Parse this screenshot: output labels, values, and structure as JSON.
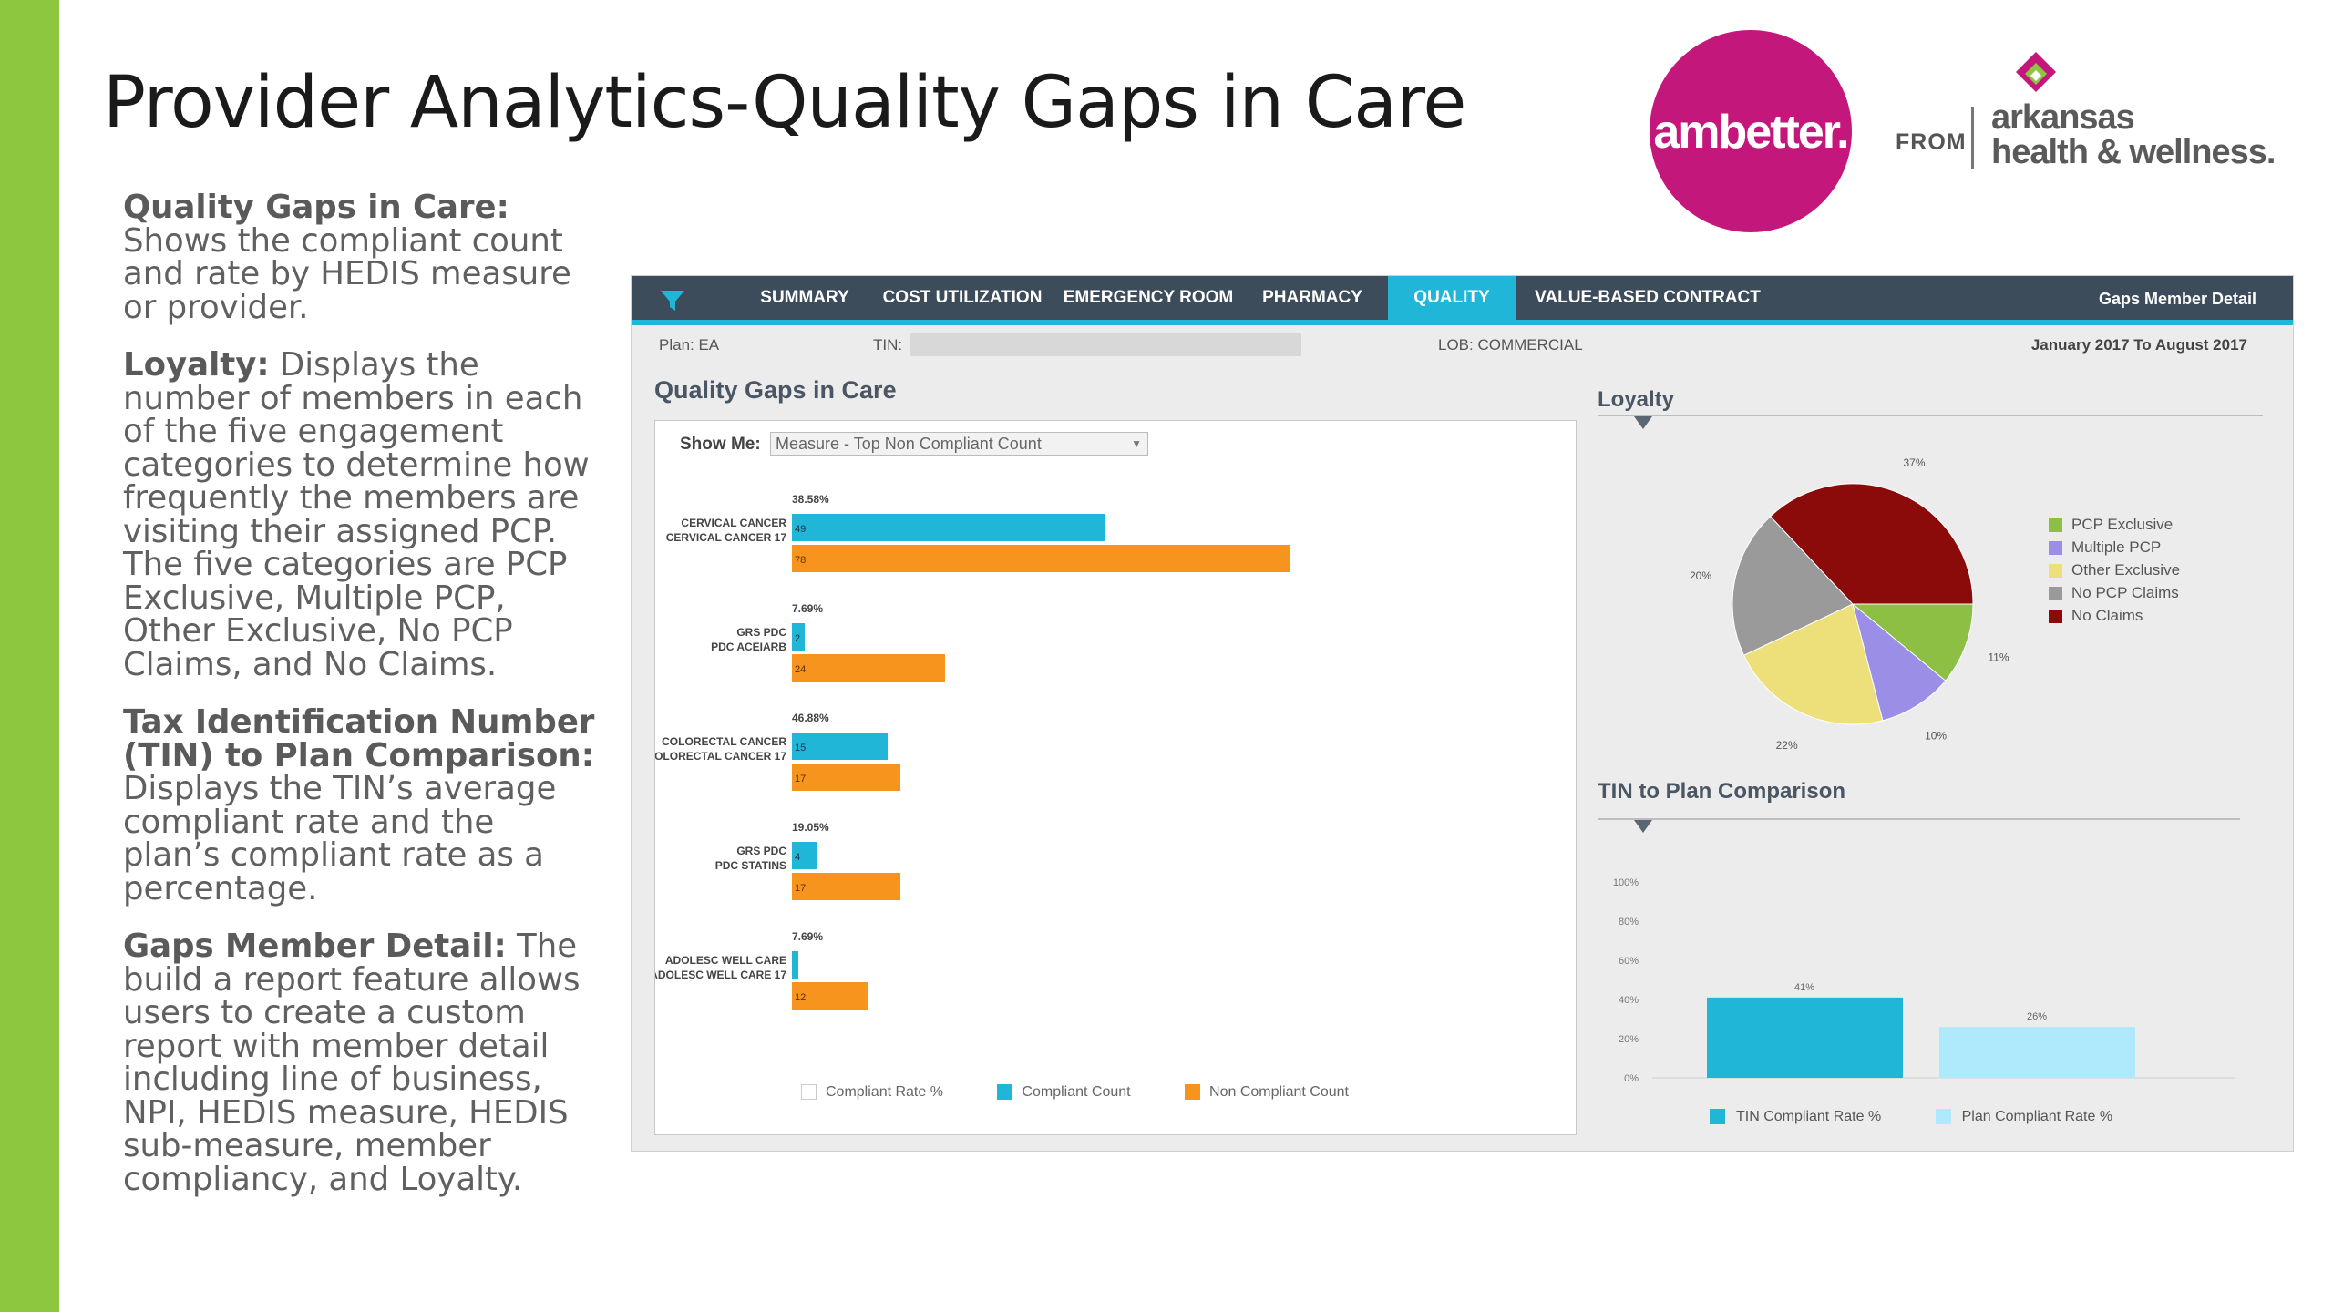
{
  "slide": {
    "title": "Provider Analytics-Quality Gaps in Care"
  },
  "logo": {
    "brand": "ambetter.",
    "from": "FROM",
    "partner_line1": "arkansas",
    "partner_line2": "health & wellness."
  },
  "descriptions": [
    {
      "heading": "Quality Gaps in Care:",
      "text": " Shows the compliant count and rate by HEDIS measure or provider."
    },
    {
      "heading": "Loyalty:",
      "text": " Displays the number of members in each of the five engagement categories to determine how frequently the members are visiting their assigned PCP. The five categories are PCP Exclusive, Multiple PCP, Other Exclusive, No PCP Claims, and No Claims."
    },
    {
      "heading": "Tax Identification Number (TIN) to Plan Comparison:",
      "text": " Displays the TIN’s average compliant rate and the plan’s compliant rate as a percentage."
    },
    {
      "heading": "Gaps Member Detail:",
      "text": " The build a report feature allows users to create a custom report with member detail including line of business, NPI, HEDIS measure, HEDIS sub-measure, member compliancy, and Loyalty."
    }
  ],
  "navbar": {
    "items": [
      "SUMMARY",
      "COST UTILIZATION",
      "EMERGENCY ROOM",
      "PHARMACY",
      "QUALITY",
      "VALUE-BASED CONTRACT"
    ],
    "active": "QUALITY",
    "right_link": "Gaps Member Detail"
  },
  "filters": {
    "plan": "Plan: EA",
    "tin_label": "TIN:",
    "lob": "LOB: COMMERCIAL",
    "date_range": "January 2017 To August 2017"
  },
  "gaps_panel": {
    "title": "Quality Gaps in Care",
    "show_me_label": "Show Me:",
    "show_me_value": "Measure - Top Non Compliant Count"
  },
  "colors": {
    "compliant": "#1fb6d8",
    "non_compliant": "#f7941d",
    "pcp_exclusive": "#8cbf44",
    "multiple_pcp": "#9b8ee6",
    "other_exclusive": "#ede07a",
    "no_pcp_claims": "#9a9a9a",
    "no_claims": "#8b0a0a",
    "tin_rate": "#1fb6d8",
    "plan_rate": "#aeeafb"
  },
  "chart_data": [
    {
      "type": "bar",
      "title": "Quality Gaps in Care",
      "categories": [
        [
          "CERVICAL CANCER",
          "CERVICAL CANCER 17"
        ],
        [
          "GRS PDC",
          "PDC ACEIARB"
        ],
        [
          "COLORECTAL CANCER",
          "COLORECTAL CANCER 17"
        ],
        [
          "GRS PDC",
          "PDC STATINS"
        ],
        [
          "ADOLESC WELL CARE",
          "ADOLESC WELL CARE 17"
        ]
      ],
      "rate_labels": [
        "38.58%",
        "7.69%",
        "46.88%",
        "19.05%",
        "7.69%"
      ],
      "series": [
        {
          "name": "Compliant Rate %",
          "values": [
            38.58,
            7.69,
            46.88,
            19.05,
            7.69
          ]
        },
        {
          "name": "Compliant Count",
          "values": [
            49,
            2,
            15,
            4,
            1
          ]
        },
        {
          "name": "Non Compliant Count",
          "values": [
            78,
            24,
            17,
            17,
            12
          ]
        }
      ],
      "value_labels": {
        "compliant": [
          "49",
          "2",
          "15",
          "4",
          ""
        ],
        "non_compliant": [
          "78",
          "24",
          "17",
          "17",
          "12"
        ]
      },
      "xmax": 80,
      "legend": "bottom"
    },
    {
      "type": "pie",
      "title": "Loyalty",
      "labels": [
        "PCP Exclusive",
        "Multiple PCP",
        "Other Exclusive",
        "No PCP Claims",
        "No Claims"
      ],
      "values": [
        11,
        10,
        22,
        20,
        37
      ],
      "value_labels": [
        "11%",
        "10%",
        "22%",
        "20%",
        "37%"
      ],
      "legend": "right"
    },
    {
      "type": "bar",
      "title": "TIN to Plan Comparison",
      "categories": [
        "TIN Compliant Rate %",
        "Plan Compliant Rate %"
      ],
      "values": [
        41,
        26
      ],
      "value_labels": [
        "41%",
        "26%"
      ],
      "yticks": [
        "0%",
        "20%",
        "40%",
        "60%",
        "80%",
        "100%"
      ],
      "ylim": [
        0,
        100
      ],
      "legend": "bottom"
    }
  ]
}
